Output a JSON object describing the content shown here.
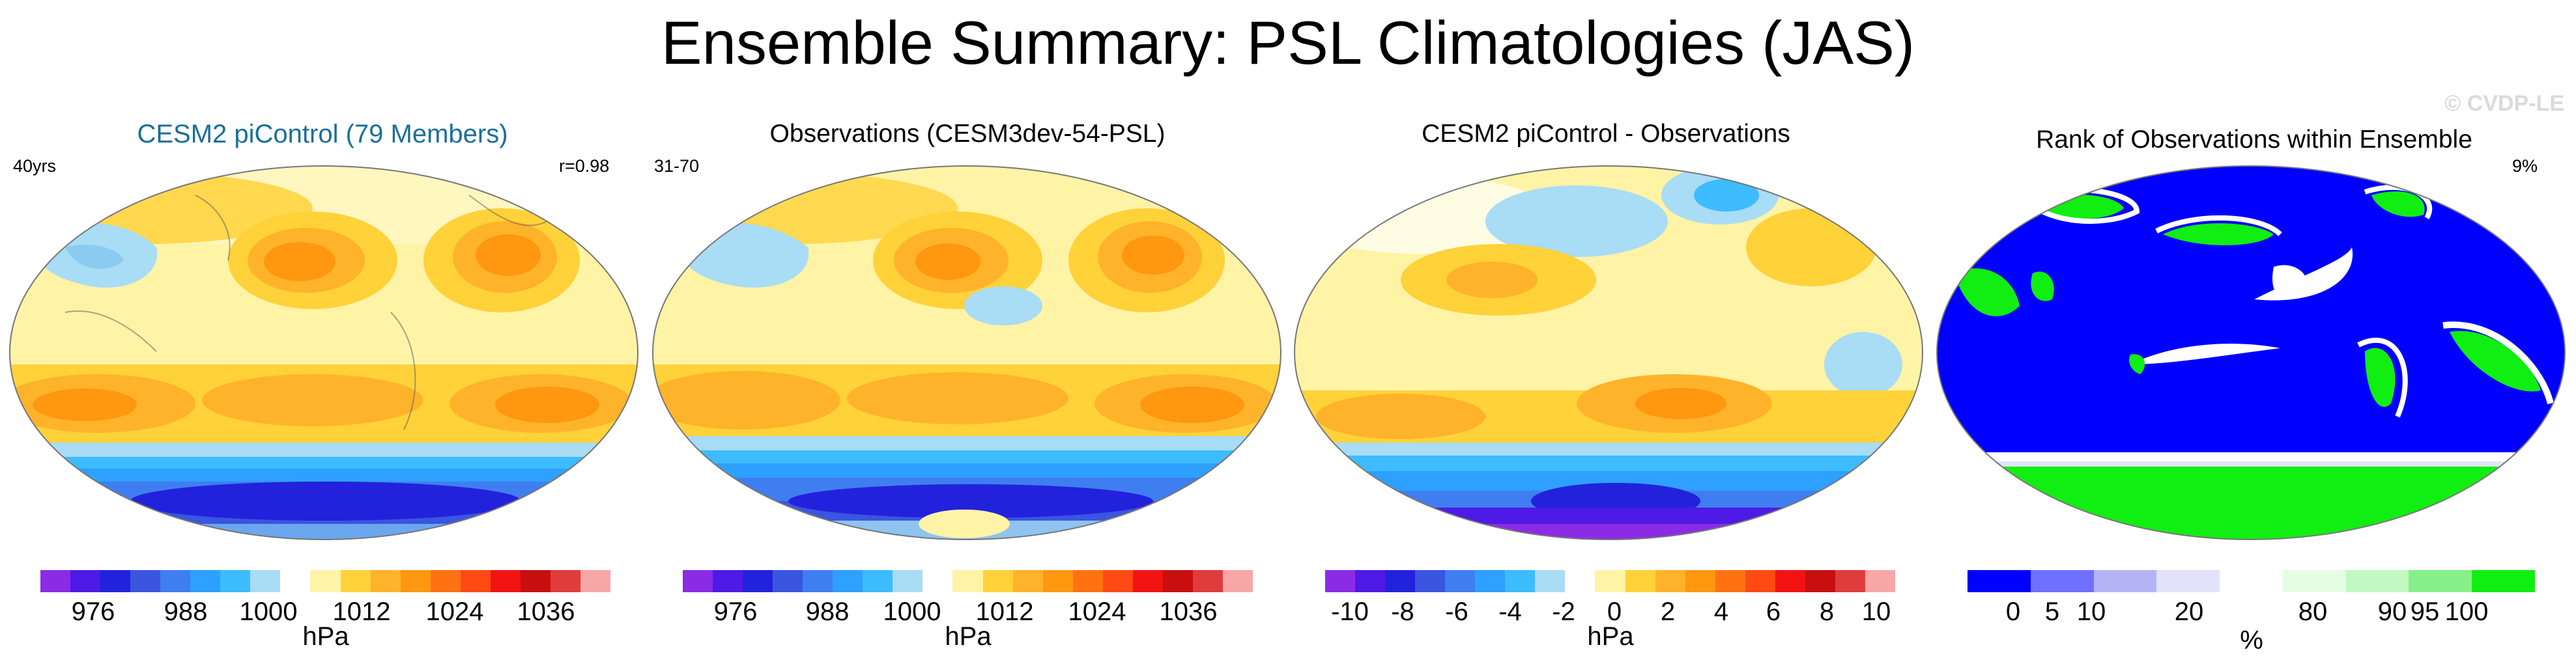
{
  "title": "Ensemble Summary: PSL Climatologies (JAS)",
  "watermark": "© CVDP-LE",
  "colors": {
    "psl_scale": [
      "#8c2be6",
      "#4d1ae6",
      "#2222dd",
      "#3a55e0",
      "#3f7ef0",
      "#2ea0ff",
      "#3dbcff",
      "#a9dcf5",
      "#ffffff",
      "#fff3a6",
      "#ffd23a",
      "#ffb32a",
      "#ff9710",
      "#ff7214",
      "#ff4a14",
      "#f21212",
      "#c80f0f",
      "#e03c3c",
      "#f8a6a6"
    ],
    "rank_scale": [
      "#0000ff",
      "#7070ff",
      "#b4b4f5",
      "#e2e2fb",
      "#ffffff",
      "#e5fde5",
      "#c2f8c2",
      "#88f088",
      "#11ee11"
    ]
  },
  "panels": [
    {
      "title": "CESM2 piControl (79 Members)",
      "left_label": "40yrs",
      "right_label": "r=0.98",
      "colorbar": {
        "ticks": [
          "976",
          "988",
          "1000",
          "1012",
          "1024",
          "1036"
        ],
        "units": "hPa"
      }
    },
    {
      "title": "Observations (CESM3dev-54-PSL)",
      "left_label": "31-70",
      "right_label": "",
      "colorbar": {
        "ticks": [
          "976",
          "988",
          "1000",
          "1012",
          "1024",
          "1036"
        ],
        "units": "hPa"
      }
    },
    {
      "title": "CESM2 piControl - Observations",
      "left_label": "",
      "right_label": "",
      "colorbar": {
        "ticks": [
          "-10",
          "-8",
          "-6",
          "-4",
          "-2",
          "0",
          "2",
          "4",
          "6",
          "8",
          "10"
        ],
        "units": "hPa"
      }
    },
    {
      "title": "Rank of Observations within Ensemble",
      "left_label": "",
      "right_label": "9%",
      "colorbar": {
        "ticks": [
          "0",
          "5",
          "10",
          "20",
          "80",
          "90",
          "95",
          "100"
        ],
        "units": "%"
      }
    }
  ]
}
